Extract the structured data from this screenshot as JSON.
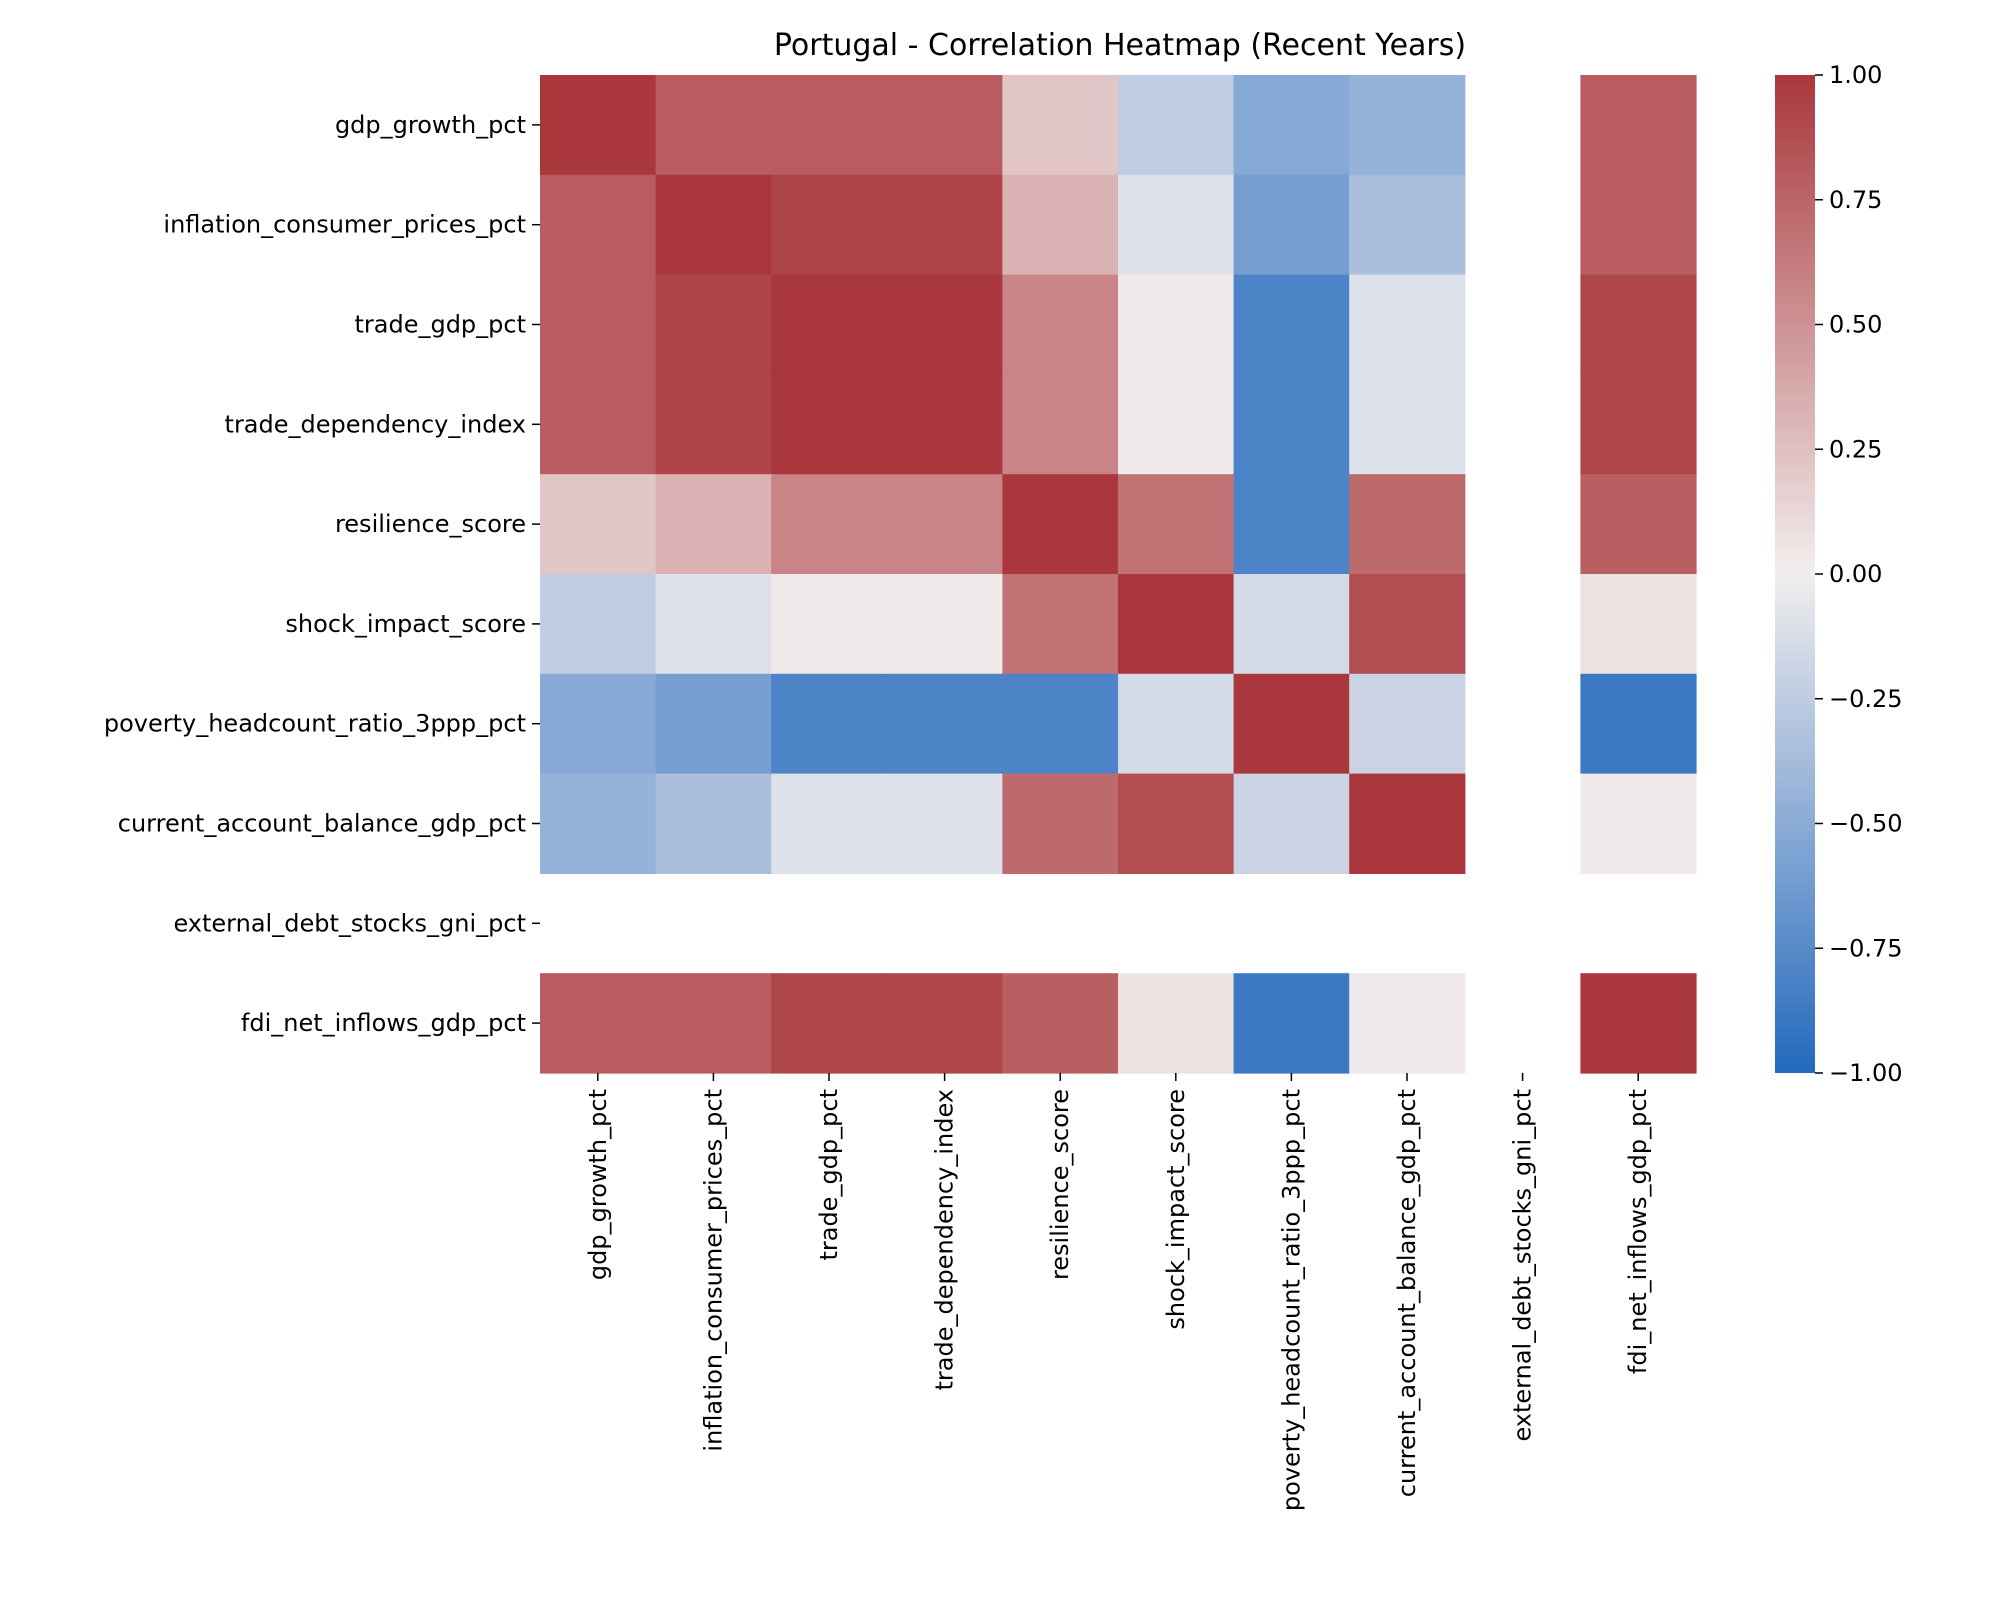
{
  "chart_data": {
    "type": "heatmap",
    "title": "Portugal - Correlation Heatmap (Recent Years)",
    "xlabel": "",
    "ylabel": "",
    "rows": [
      "gdp_growth_pct",
      "inflation_consumer_prices_pct",
      "trade_gdp_pct",
      "trade_dependency_index",
      "resilience_score",
      "shock_impact_score",
      "poverty_headcount_ratio_3ppp_pct",
      "current_account_balance_gdp_pct",
      "external_debt_stocks_gni_pct",
      "fdi_net_inflows_gdp_pct"
    ],
    "columns": [
      "gdp_growth_pct",
      "inflation_consumer_prices_pct",
      "trade_gdp_pct",
      "trade_dependency_index",
      "resilience_score",
      "shock_impact_score",
      "poverty_headcount_ratio_3ppp_pct",
      "current_account_balance_gdp_pct",
      "external_debt_stocks_gni_pct",
      "fdi_net_inflows_gdp_pct"
    ],
    "values": [
      [
        1.0,
        0.8,
        0.8,
        0.8,
        0.22,
        -0.25,
        -0.52,
        -0.45,
        null,
        0.8
      ],
      [
        0.8,
        1.0,
        0.93,
        0.93,
        0.33,
        -0.1,
        -0.6,
        -0.35,
        null,
        0.8
      ],
      [
        0.8,
        0.93,
        1.0,
        1.0,
        0.58,
        0.03,
        -0.8,
        -0.1,
        null,
        0.92
      ],
      [
        0.8,
        0.93,
        1.0,
        1.0,
        0.58,
        0.03,
        -0.8,
        -0.1,
        null,
        0.92
      ],
      [
        0.22,
        0.33,
        0.58,
        0.58,
        1.0,
        0.68,
        -0.8,
        0.72,
        null,
        0.78
      ],
      [
        -0.25,
        -0.1,
        0.03,
        0.03,
        0.68,
        1.0,
        -0.15,
        0.88,
        null,
        0.07
      ],
      [
        -0.52,
        -0.6,
        -0.8,
        -0.8,
        -0.8,
        -0.15,
        1.0,
        -0.2,
        null,
        -0.88
      ],
      [
        -0.45,
        -0.35,
        -0.1,
        -0.1,
        0.72,
        0.88,
        -0.2,
        1.0,
        null,
        0.03
      ],
      [
        null,
        null,
        null,
        null,
        null,
        null,
        null,
        null,
        null,
        null
      ],
      [
        0.8,
        0.8,
        0.92,
        0.92,
        0.78,
        0.07,
        -0.88,
        0.03,
        null,
        1.0
      ]
    ],
    "colormap": "vlag",
    "vmin": -1.0,
    "vmax": 1.0,
    "colorbar_ticks": [
      "1.00",
      "0.75",
      "0.50",
      "0.25",
      "0.00",
      "−0.25",
      "−0.50",
      "−0.75",
      "−1.00"
    ],
    "colorbar_tick_values": [
      1.0,
      0.75,
      0.5,
      0.25,
      0.0,
      -0.25,
      -0.5,
      -0.75,
      -1.0
    ],
    "colors": {
      "negative": "#2369bd",
      "neutral": "#f2eeee",
      "positive": "#a9373b"
    }
  }
}
